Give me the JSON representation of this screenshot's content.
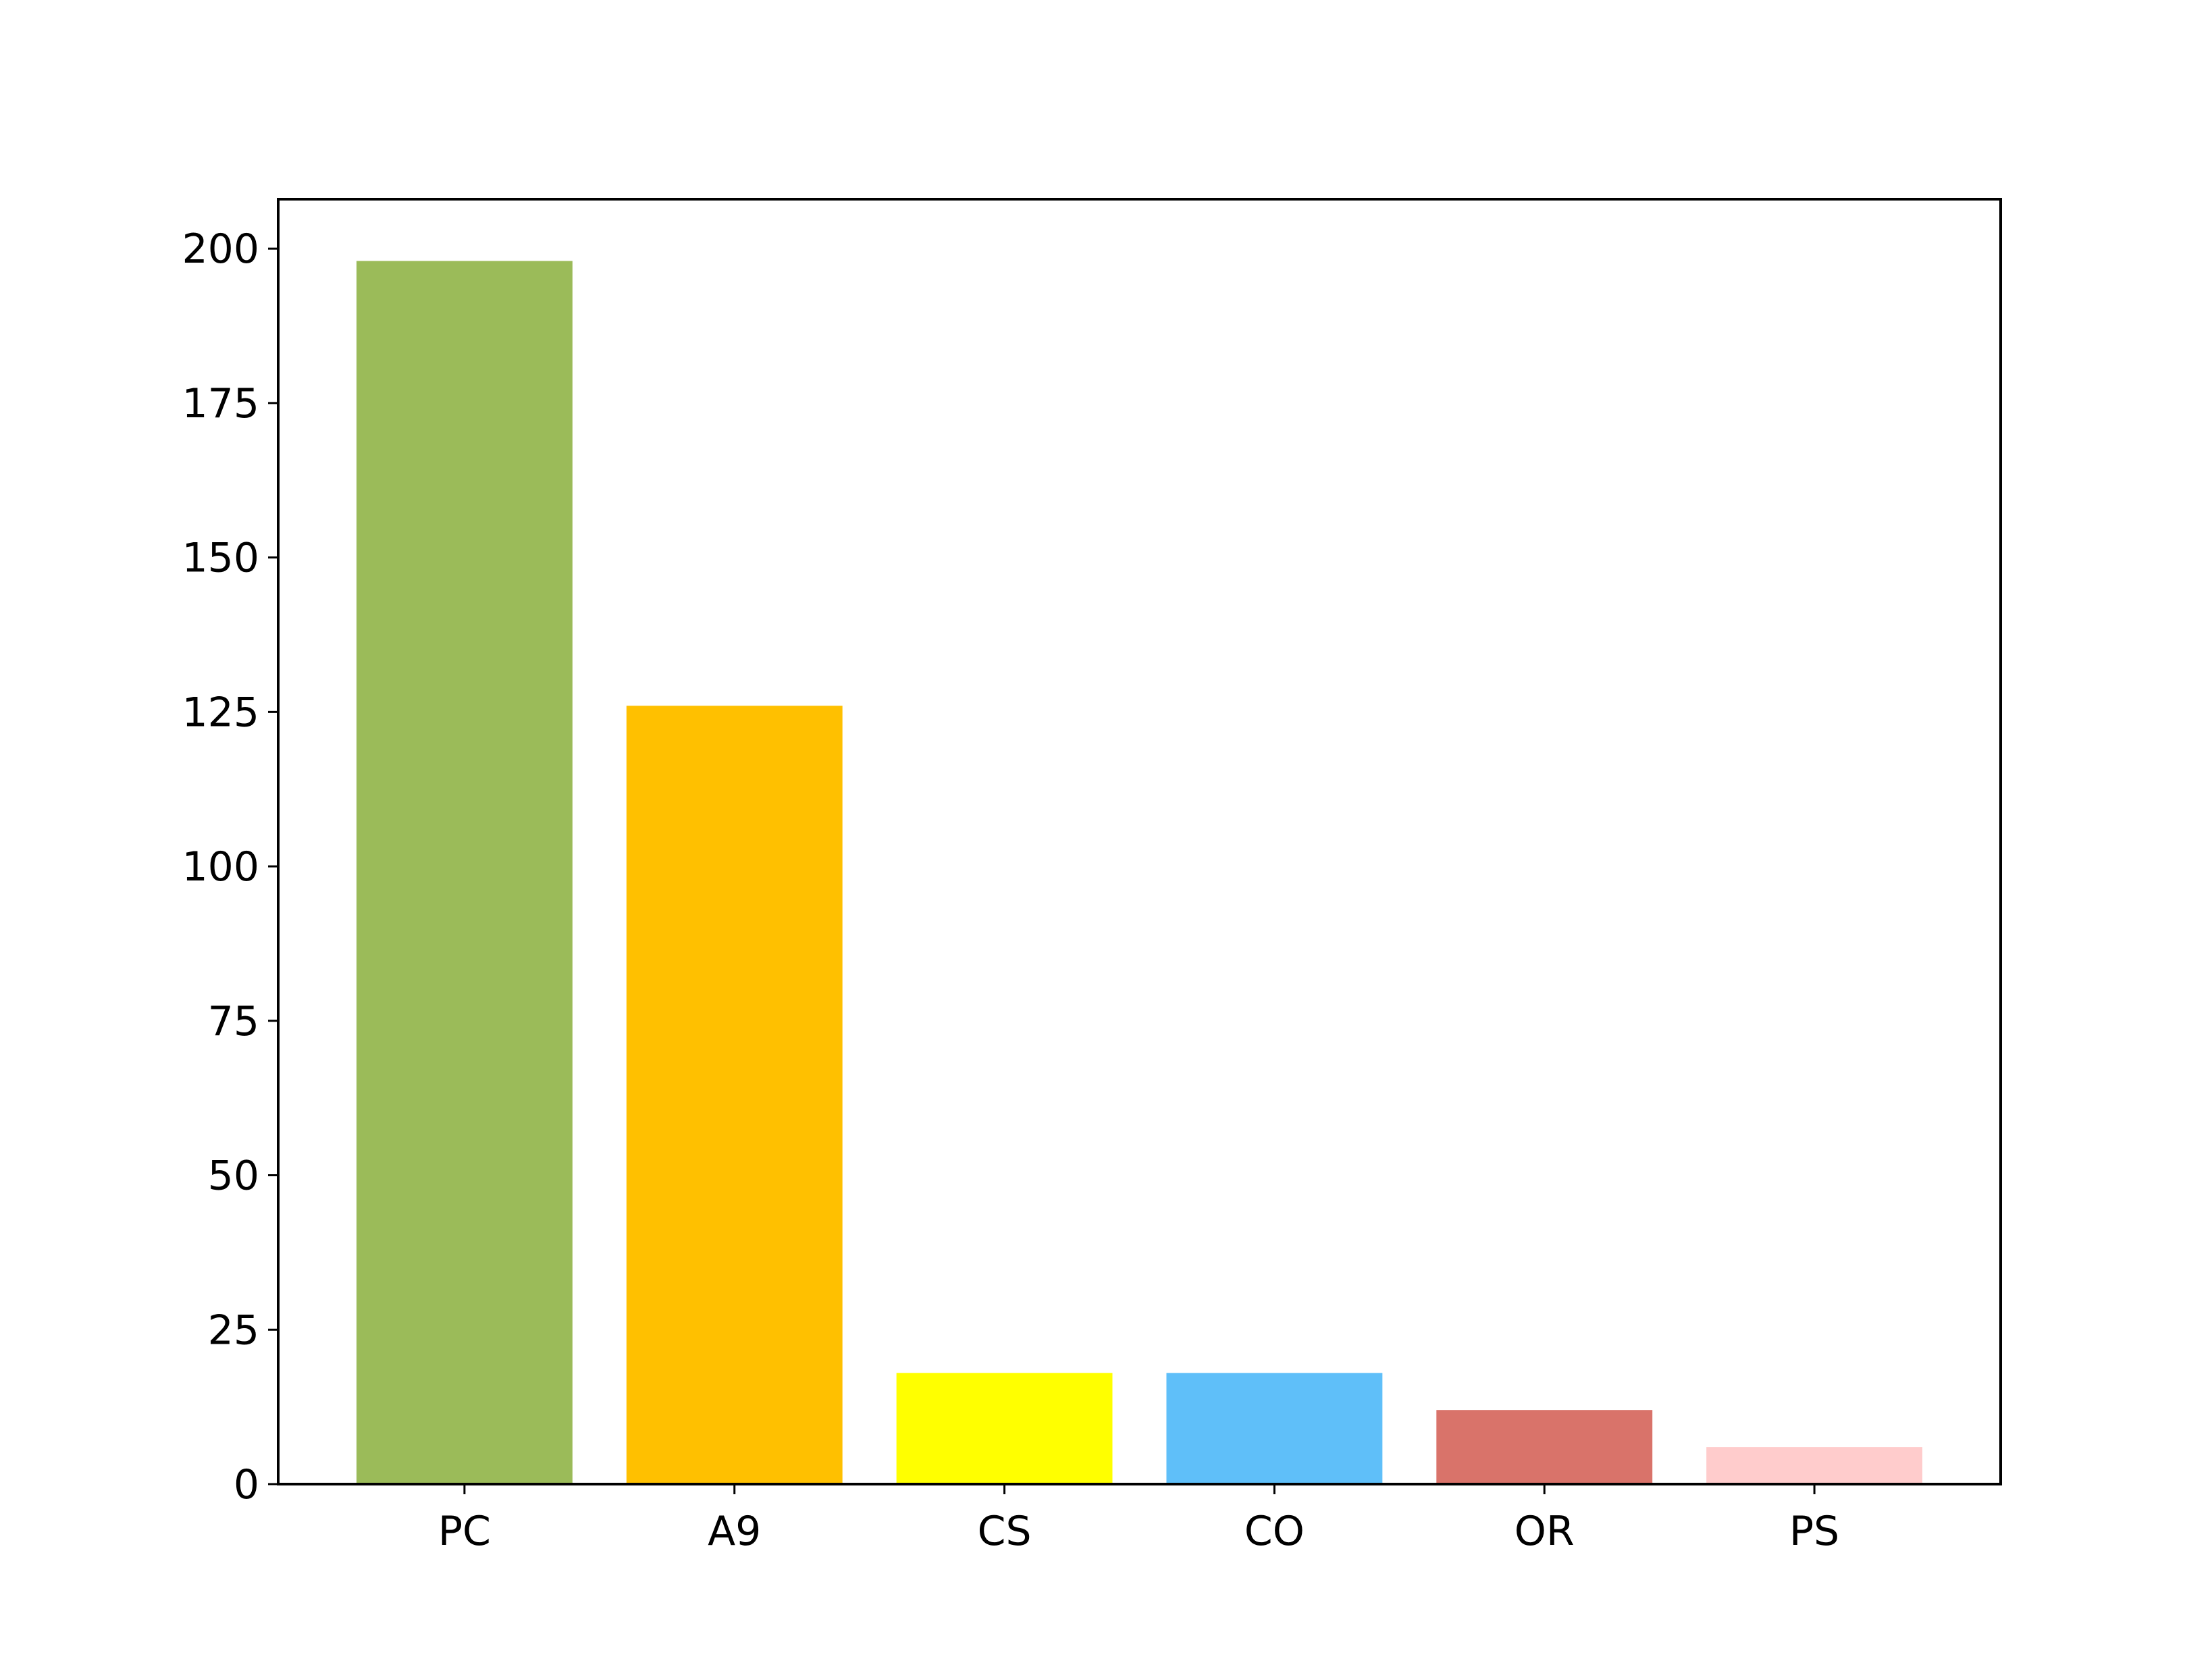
{
  "chart_data": {
    "type": "bar",
    "title": "",
    "xlabel": "",
    "ylabel": "",
    "categories": [
      "PC",
      "A9",
      "CS",
      "CO",
      "OR",
      "PS"
    ],
    "values": [
      198,
      126,
      18,
      18,
      12,
      6
    ],
    "colors": [
      "#9BBB59",
      "#FFC000",
      "#FFFF00",
      "#5FBFF9",
      "#D9736A",
      "#FFCCCC"
    ],
    "ylim": [
      0,
      208
    ],
    "yticks": [
      0,
      25,
      50,
      75,
      100,
      125,
      150,
      175,
      200
    ],
    "grid": false,
    "legend": "none"
  }
}
